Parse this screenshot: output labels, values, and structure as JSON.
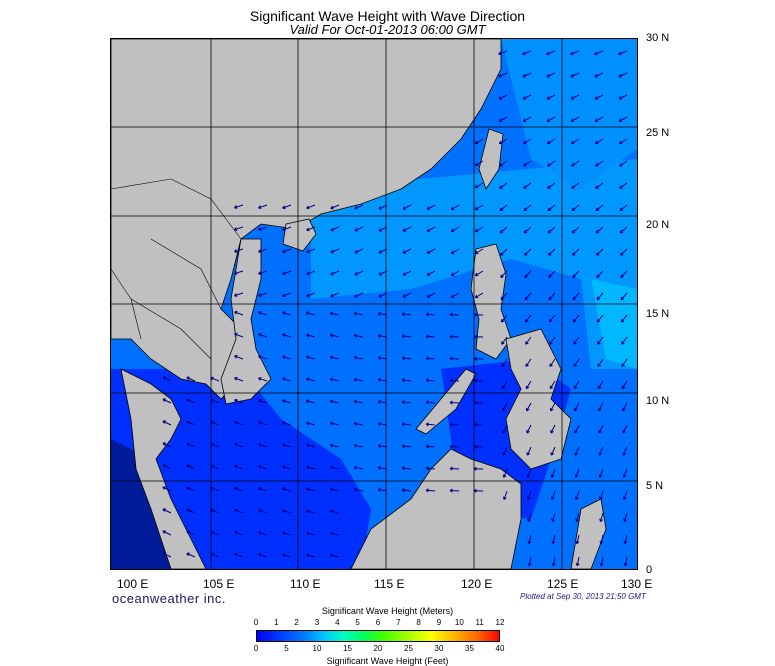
{
  "title": "Significant Wave Height with Wave Direction",
  "valid": "Valid For Oct-01-2013 06:00 GMT",
  "brand": "oceanweather inc.",
  "plotted": "Plotted at Sep 30, 2013 21:50 GMT",
  "lat_labels": [
    "30 N",
    "25 N",
    "20 N",
    "15 N",
    "10 N",
    "5 N",
    "0"
  ],
  "lon_labels": [
    "100 E",
    "105 E",
    "110 E",
    "115 E",
    "120 E",
    "125 E",
    "130 E"
  ],
  "colorbar": {
    "meters_title": "Significant Wave Height (Meters)",
    "feet_title": "Significant Wave Height (Feet)",
    "meters_ticks": [
      "0",
      "1",
      "2",
      "3",
      "4",
      "5",
      "6",
      "7",
      "8",
      "9",
      "10",
      "11",
      "12"
    ],
    "feet_ticks": [
      "0",
      "5",
      "10",
      "15",
      "20",
      "25",
      "30",
      "35",
      "40"
    ]
  },
  "colors": {
    "land": "#c0c0c0",
    "deep_wave": "#0030ff",
    "mid_wave": "#0070ff",
    "high_wave": "#00a8ff",
    "arrow": "#000080"
  }
}
